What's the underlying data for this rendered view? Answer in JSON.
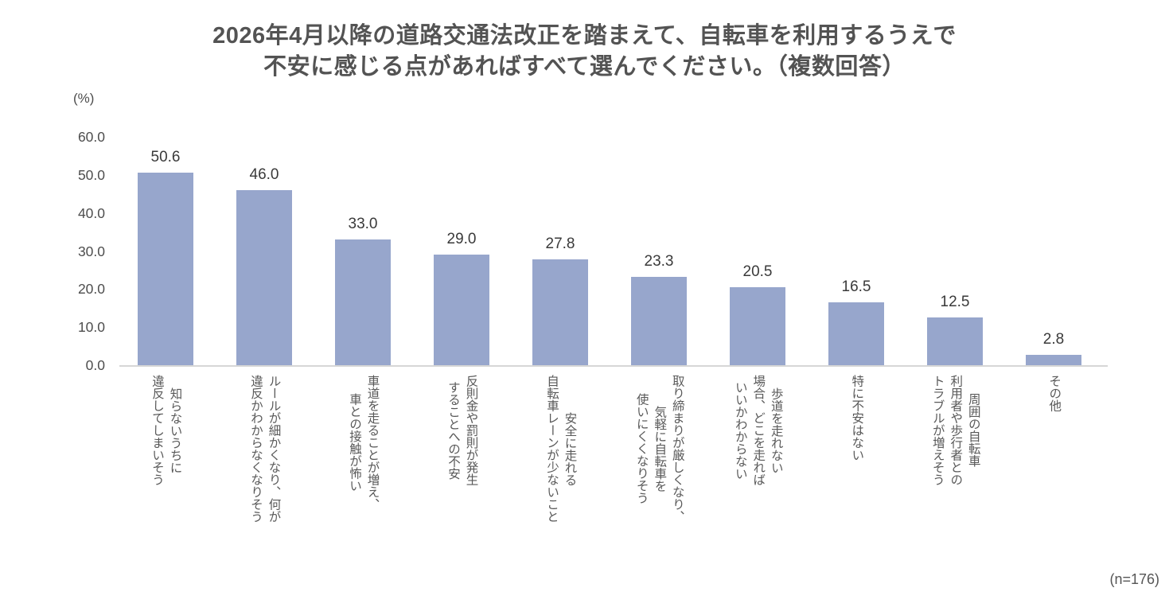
{
  "title": "2026年4月以降の道路交通法改正を踏まえて、自転車を利用するうえで\n不安に感じる点があればすべて選んでください。（複数回答）",
  "footnote": "(n=176)",
  "chart_data": {
    "type": "bar",
    "title": "2026年4月以降の道路交通法改正を踏まえて、自転車を利用するうえで不安に感じる点があればすべて選んでください。（複数回答）",
    "ylabel": "(%)",
    "xlabel": "",
    "ylim": [
      0,
      60
    ],
    "y_ticks": [
      "60.0",
      "50.0",
      "40.0",
      "30.0",
      "20.0",
      "10.0",
      "0.0"
    ],
    "grid": false,
    "legend": "none",
    "sample_size_note": "(n=176)",
    "bar_color": "#97a6cc",
    "categories": [
      "知らないうちに\n違反してしまいそう",
      "ルールが細かくなり、何が\n違反かわからなくなりそう",
      "車道を走ることが増え、\n車との接触が怖い",
      "反則金や罰則が発生\nすることへの不安",
      "安全に走れる\n自転車レーンが少ないこと",
      "取り締まりが厳しくなり、\n気軽に自転車を\n使いにくくなりそう",
      "歩道を走れない\n場合、どこを走れば\nいいかわからない",
      "特に不安はない",
      "周囲の自転車\n利用者や歩行者との\nトラブルが増えそう",
      "その他"
    ],
    "values": [
      50.6,
      46.0,
      33.0,
      29.0,
      27.8,
      23.3,
      20.5,
      16.5,
      12.5,
      2.8
    ],
    "value_labels": [
      "50.6",
      "46.0",
      "33.0",
      "29.0",
      "27.8",
      "23.3",
      "20.5",
      "16.5",
      "12.5",
      "2.8"
    ]
  }
}
